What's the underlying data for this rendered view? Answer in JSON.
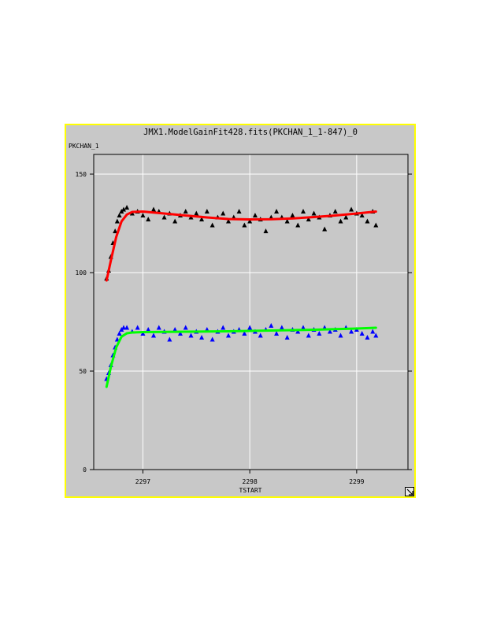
{
  "chart_data": {
    "type": "scatter",
    "title": "JMX1.ModelGainFit428.fits(PKCHAN_1_1-847)_0",
    "xlabel": "TSTART",
    "ylabel": "PKCHAN_1",
    "xlim": [
      2296.54,
      2299.48
    ],
    "ylim": [
      0,
      160
    ],
    "xticks": [
      2297,
      2298,
      2299
    ],
    "yticks": [
      0,
      50,
      100,
      150
    ],
    "grid": true,
    "series": [
      {
        "type": "scatter",
        "marker": "triangle",
        "color": "#000000",
        "x": [
          2296.66,
          2296.68,
          2296.7,
          2296.72,
          2296.74,
          2296.76,
          2296.78,
          2296.8,
          2296.82,
          2296.85,
          2296.9,
          2296.95,
          2297.0,
          2297.05,
          2297.1,
          2297.15,
          2297.2,
          2297.25,
          2297.3,
          2297.35,
          2297.4,
          2297.45,
          2297.5,
          2297.55,
          2297.6,
          2297.65,
          2297.7,
          2297.75,
          2297.8,
          2297.85,
          2297.9,
          2297.95,
          2298.0,
          2298.05,
          2298.1,
          2298.15,
          2298.2,
          2298.25,
          2298.3,
          2298.35,
          2298.4,
          2298.45,
          2298.5,
          2298.55,
          2298.6,
          2298.65,
          2298.7,
          2298.75,
          2298.8,
          2298.85,
          2298.9,
          2298.95,
          2299.0,
          2299.05,
          2299.1,
          2299.15,
          2299.18
        ],
        "y": [
          97,
          101,
          108,
          115,
          121,
          126,
          129,
          131,
          132,
          133,
          130,
          131,
          129,
          127,
          132,
          131,
          128,
          130,
          126,
          129,
          131,
          128,
          130,
          127,
          131,
          124,
          128,
          130,
          126,
          128,
          131,
          124,
          126,
          129,
          127,
          121,
          128,
          131,
          128,
          126,
          129,
          124,
          131,
          127,
          130,
          128,
          122,
          129,
          131,
          126,
          128,
          132,
          130,
          129,
          126,
          131,
          124
        ]
      },
      {
        "type": "line",
        "color": "#ff0000",
        "x": [
          2296.66,
          2296.7,
          2296.75,
          2296.8,
          2296.85,
          2296.9,
          2297.0,
          2297.2,
          2297.4,
          2297.6,
          2297.8,
          2298.0,
          2298.2,
          2298.4,
          2298.6,
          2298.8,
          2299.0,
          2299.18
        ],
        "y": [
          96,
          106,
          118,
          126,
          129.5,
          130.8,
          131,
          130,
          129,
          128,
          127.2,
          127,
          127.1,
          127.5,
          128.2,
          129,
          130,
          131
        ]
      },
      {
        "type": "scatter",
        "marker": "triangle",
        "color": "#0000ff",
        "x": [
          2296.66,
          2296.68,
          2296.7,
          2296.72,
          2296.74,
          2296.76,
          2296.78,
          2296.8,
          2296.82,
          2296.85,
          2296.9,
          2296.95,
          2297.0,
          2297.05,
          2297.1,
          2297.15,
          2297.2,
          2297.25,
          2297.3,
          2297.35,
          2297.4,
          2297.45,
          2297.5,
          2297.55,
          2297.6,
          2297.65,
          2297.7,
          2297.75,
          2297.8,
          2297.85,
          2297.9,
          2297.95,
          2298.0,
          2298.05,
          2298.1,
          2298.15,
          2298.2,
          2298.25,
          2298.3,
          2298.35,
          2298.4,
          2298.45,
          2298.5,
          2298.55,
          2298.6,
          2298.65,
          2298.7,
          2298.75,
          2298.8,
          2298.85,
          2298.9,
          2298.95,
          2299.0,
          2299.05,
          2299.1,
          2299.15,
          2299.18
        ],
        "y": [
          46,
          49,
          53,
          58,
          62,
          66,
          69,
          71,
          72,
          72,
          70,
          72,
          69,
          71,
          68,
          72,
          70,
          66,
          71,
          69,
          72,
          68,
          70,
          67,
          71,
          66,
          70,
          72,
          68,
          70,
          71,
          69,
          72,
          70,
          68,
          71,
          73,
          69,
          72,
          67,
          71,
          70,
          72,
          68,
          71,
          69,
          72,
          70,
          71,
          68,
          72,
          70,
          71,
          69,
          67,
          70,
          68
        ]
      },
      {
        "type": "line",
        "color": "#00ff00",
        "x": [
          2296.66,
          2296.7,
          2296.75,
          2296.8,
          2296.85,
          2296.9,
          2297.0,
          2297.2,
          2297.4,
          2297.6,
          2297.8,
          2298.0,
          2298.2,
          2298.4,
          2298.6,
          2298.8,
          2299.0,
          2299.18
        ],
        "y": [
          42,
          52,
          62,
          67.5,
          69.2,
          69.6,
          69.8,
          69.9,
          70,
          70.1,
          70.2,
          70.4,
          70.6,
          70.8,
          71,
          71.3,
          71.6,
          72
        ]
      }
    ]
  }
}
